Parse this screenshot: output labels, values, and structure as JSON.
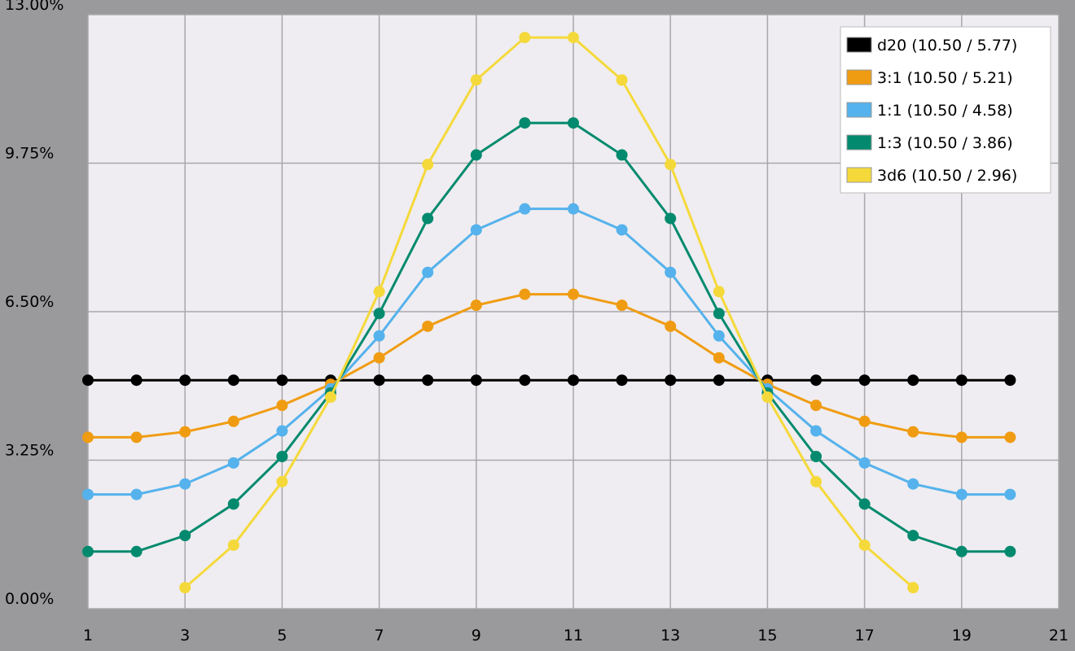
{
  "chart_data": {
    "type": "line",
    "x": [
      1,
      2,
      3,
      4,
      5,
      6,
      7,
      8,
      9,
      10,
      11,
      12,
      13,
      14,
      15,
      16,
      17,
      18,
      19,
      20
    ],
    "series": [
      {
        "name": "d20 (10.50 / 5.77)",
        "color": "#000000",
        "values": [
          5,
          5,
          5,
          5,
          5,
          5,
          5,
          5,
          5,
          5,
          5,
          5,
          5,
          5,
          5,
          5,
          5,
          5,
          5,
          5
        ]
      },
      {
        "name": "3:1 (10.50 / 5.21)",
        "color": "#f09c12",
        "values": [
          3.75,
          3.75,
          3.87,
          4.1,
          4.45,
          4.91,
          5.49,
          6.18,
          6.64,
          6.88,
          6.88,
          6.64,
          6.18,
          5.49,
          4.91,
          4.45,
          4.1,
          3.87,
          3.75,
          3.75
        ]
      },
      {
        "name": "1:1 (10.50 / 4.58)",
        "color": "#55b2ec",
        "values": [
          2.5,
          2.5,
          2.73,
          3.19,
          3.89,
          4.81,
          5.97,
          7.36,
          8.29,
          8.75,
          8.75,
          8.29,
          7.36,
          5.97,
          4.81,
          3.89,
          3.19,
          2.73,
          2.5,
          2.5
        ]
      },
      {
        "name": "1:3 (10.50 / 3.86)",
        "color": "#038a6e",
        "values": [
          1.25,
          1.25,
          1.6,
          2.29,
          3.33,
          4.72,
          6.46,
          8.54,
          9.93,
          10.63,
          10.63,
          9.93,
          8.54,
          6.46,
          4.72,
          3.33,
          2.29,
          1.6,
          1.25,
          1.25
        ]
      },
      {
        "name": "3d6 (10.50 / 2.96)",
        "color": "#f5d93a",
        "values": [
          null,
          null,
          0.46,
          1.39,
          2.78,
          4.63,
          6.94,
          9.72,
          11.57,
          12.5,
          12.5,
          11.57,
          9.72,
          6.94,
          4.63,
          2.78,
          1.39,
          0.46,
          null,
          null
        ]
      }
    ],
    "xlim": [
      1,
      21
    ],
    "xticks": [
      1,
      3,
      5,
      7,
      9,
      11,
      13,
      15,
      17,
      19,
      21
    ],
    "ylim": [
      0,
      13
    ],
    "yticks": [
      {
        "value": 0,
        "label": "0.00%"
      },
      {
        "value": 3.25,
        "label": "3.25%"
      },
      {
        "value": 6.5,
        "label": "6.50%"
      },
      {
        "value": 9.75,
        "label": "9.75%"
      },
      {
        "value": 13,
        "label": "13.00%"
      }
    ],
    "grid": true,
    "legend": "upper right"
  }
}
